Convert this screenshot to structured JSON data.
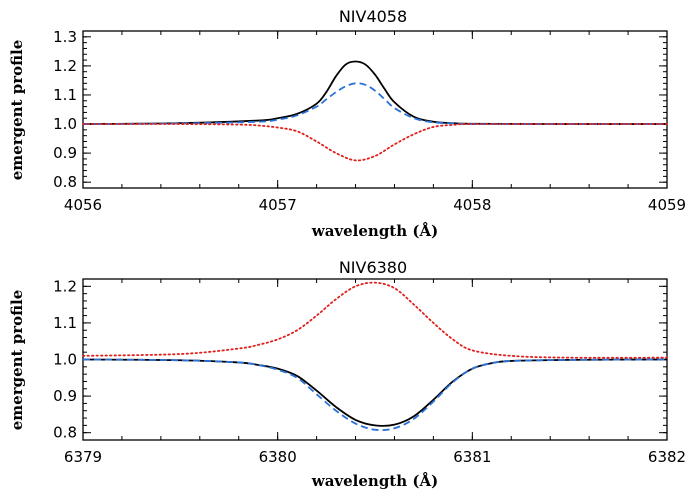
{
  "chart_data": [
    {
      "type": "line",
      "title": "NIV4058",
      "xlabel": "wavelength (Å)",
      "ylabel": "emergent profile",
      "xlim": [
        4056,
        4059
      ],
      "ylim": [
        0.78,
        1.32
      ],
      "xticks": [
        4056,
        4057,
        4058,
        4059
      ],
      "xtick_labels": [
        "4056",
        "4057",
        "4058",
        "4059"
      ],
      "yticks": [
        0.8,
        0.9,
        1.0,
        1.1,
        1.2,
        1.3
      ],
      "ytick_labels": [
        "0.8",
        "0.9",
        "1.0",
        "1.1",
        "1.2",
        "1.3"
      ],
      "grid": false,
      "legend": "none",
      "series": [
        {
          "style": "solid",
          "color": "#000000",
          "x": [
            4056.0,
            4056.5,
            4056.9,
            4057.0,
            4057.1,
            4057.2,
            4057.25,
            4057.3,
            4057.35,
            4057.4,
            4057.45,
            4057.5,
            4057.55,
            4057.6,
            4057.7,
            4057.8,
            4057.9,
            4058.0,
            4058.5,
            4059.0
          ],
          "y": [
            1.0,
            1.003,
            1.012,
            1.02,
            1.035,
            1.07,
            1.11,
            1.165,
            1.205,
            1.215,
            1.205,
            1.17,
            1.12,
            1.075,
            1.025,
            1.008,
            1.003,
            1.001,
            1.0,
            1.0
          ]
        },
        {
          "style": "dashed",
          "color": "#2a72d8",
          "x": [
            4056.0,
            4056.5,
            4056.9,
            4057.0,
            4057.1,
            4057.2,
            4057.25,
            4057.3,
            4057.35,
            4057.4,
            4057.45,
            4057.5,
            4057.55,
            4057.6,
            4057.7,
            4057.8,
            4057.9,
            4058.0,
            4058.5,
            4059.0
          ],
          "y": [
            1.0,
            1.002,
            1.008,
            1.015,
            1.03,
            1.06,
            1.085,
            1.11,
            1.13,
            1.14,
            1.135,
            1.115,
            1.085,
            1.055,
            1.02,
            1.006,
            1.002,
            1.0,
            1.0,
            1.0
          ]
        },
        {
          "style": "dotted",
          "color": "#e0201c",
          "x": [
            4056.0,
            4056.5,
            4056.8,
            4056.9,
            4057.0,
            4057.1,
            4057.2,
            4057.3,
            4057.4,
            4057.5,
            4057.6,
            4057.7,
            4057.8,
            4057.9,
            4058.0,
            4058.5,
            4059.0
          ],
          "y": [
            1.0,
            1.0,
            0.998,
            0.995,
            0.988,
            0.975,
            0.94,
            0.9,
            0.875,
            0.89,
            0.93,
            0.965,
            0.99,
            0.997,
            1.0,
            1.0,
            1.0
          ]
        }
      ]
    },
    {
      "type": "line",
      "title": "NIV6380",
      "xlabel": "wavelength (Å)",
      "ylabel": "emergent profile",
      "xlim": [
        6379,
        6382
      ],
      "ylim": [
        0.78,
        1.22
      ],
      "xticks": [
        6379,
        6380,
        6381,
        6382
      ],
      "xtick_labels": [
        "6379",
        "6380",
        "6381",
        "6382"
      ],
      "yticks": [
        0.8,
        0.9,
        1.0,
        1.1,
        1.2
      ],
      "ytick_labels": [
        "0.8",
        "0.9",
        "1.0",
        "1.1",
        "1.2"
      ],
      "grid": false,
      "legend": "none",
      "series": [
        {
          "style": "solid",
          "color": "#000000",
          "x": [
            6379.0,
            6379.5,
            6379.8,
            6379.9,
            6380.0,
            6380.1,
            6380.2,
            6380.3,
            6380.4,
            6380.5,
            6380.6,
            6380.7,
            6380.8,
            6380.9,
            6381.0,
            6381.1,
            6381.2,
            6381.5,
            6382.0
          ],
          "y": [
            1.0,
            0.998,
            0.992,
            0.985,
            0.975,
            0.955,
            0.915,
            0.87,
            0.835,
            0.82,
            0.822,
            0.845,
            0.89,
            0.94,
            0.975,
            0.99,
            0.996,
            0.999,
            1.0
          ]
        },
        {
          "style": "dashed",
          "color": "#2a72d8",
          "x": [
            6379.0,
            6379.5,
            6379.8,
            6379.9,
            6380.0,
            6380.1,
            6380.2,
            6380.3,
            6380.4,
            6380.5,
            6380.6,
            6380.7,
            6380.8,
            6380.9,
            6381.0,
            6381.1,
            6381.2,
            6381.5,
            6382.0
          ],
          "y": [
            1.0,
            0.998,
            0.992,
            0.985,
            0.972,
            0.95,
            0.905,
            0.86,
            0.825,
            0.808,
            0.812,
            0.838,
            0.885,
            0.938,
            0.975,
            0.99,
            0.996,
            0.999,
            1.0
          ]
        },
        {
          "style": "dotted",
          "color": "#e0201c",
          "x": [
            6379.0,
            6379.5,
            6379.8,
            6379.9,
            6380.0,
            6380.1,
            6380.2,
            6380.3,
            6380.4,
            6380.5,
            6380.6,
            6380.7,
            6380.8,
            6380.9,
            6381.0,
            6381.2,
            6381.5,
            6382.0
          ],
          "y": [
            1.01,
            1.015,
            1.03,
            1.04,
            1.055,
            1.08,
            1.12,
            1.165,
            1.2,
            1.21,
            1.195,
            1.15,
            1.1,
            1.055,
            1.025,
            1.01,
            1.005,
            1.005
          ]
        }
      ]
    }
  ]
}
